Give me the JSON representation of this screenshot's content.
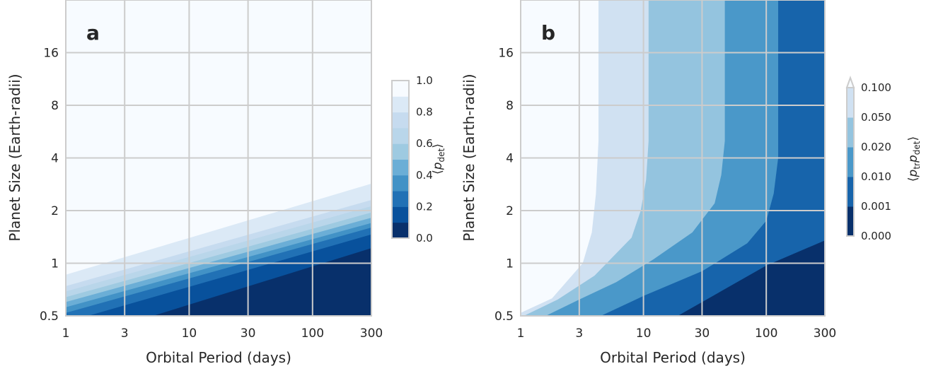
{
  "chart_data": [
    {
      "type": "contour",
      "panel_label": "a",
      "xlabel": "Orbital Period (days)",
      "ylabel": "Planet Size (Earth-radii)",
      "xscale": "log",
      "yscale": "log2",
      "xlim": [
        1,
        300
      ],
      "ylim": [
        0.5,
        32
      ],
      "xticks": [
        1,
        3,
        10,
        30,
        100,
        300
      ],
      "xtick_labels": [
        "1",
        "3",
        "10",
        "30",
        "100",
        "300"
      ],
      "yticks": [
        0.5,
        1,
        2,
        4,
        8,
        16
      ],
      "ytick_labels": [
        "0.5",
        "1",
        "2",
        "4",
        "8",
        "16"
      ],
      "grid": true,
      "colormap": "Blues_r",
      "colorbar": {
        "label": "⟨p_det⟩",
        "levels": [
          0.0,
          0.1,
          0.2,
          0.3,
          0.4,
          0.5,
          0.6,
          0.7,
          0.8,
          0.9,
          1.0
        ],
        "tick_values": [
          0.0,
          0.2,
          0.4,
          0.6,
          0.8,
          1.0
        ],
        "tick_labels": [
          "0.0",
          "0.2",
          "0.4",
          "0.6",
          "0.8",
          "1.0"
        ],
        "colors": [
          "#08306b",
          "#08519c",
          "#2171b5",
          "#4292c6",
          "#6baed6",
          "#9ecae1",
          "#b9d6ea",
          "#c6dbef",
          "#dbe9f6",
          "#e6f0f9"
        ],
        "top_color": "#f7fbff"
      },
      "contours": [
        {
          "level": 0.1,
          "r_at_p1": 0.35,
          "r_at_p300": 1.22
        },
        {
          "level": 0.2,
          "r_at_p1": 0.46,
          "r_at_p300": 1.46
        },
        {
          "level": 0.3,
          "r_at_p1": 0.52,
          "r_at_p300": 1.6
        },
        {
          "level": 0.4,
          "r_at_p1": 0.56,
          "r_at_p300": 1.7
        },
        {
          "level": 0.5,
          "r_at_p1": 0.6,
          "r_at_p300": 1.82
        },
        {
          "level": 0.6,
          "r_at_p1": 0.64,
          "r_at_p300": 1.95
        },
        {
          "level": 0.7,
          "r_at_p1": 0.69,
          "r_at_p300": 2.12
        },
        {
          "level": 0.8,
          "r_at_p1": 0.74,
          "r_at_p300": 2.3
        },
        {
          "level": 0.9,
          "r_at_p1": 0.86,
          "r_at_p300": 2.85
        }
      ]
    },
    {
      "type": "contour",
      "panel_label": "b",
      "xlabel": "Orbital Period (days)",
      "ylabel": "Planet Size (Earth-radii)",
      "xscale": "log",
      "yscale": "log2",
      "xlim": [
        1,
        300
      ],
      "ylim": [
        0.5,
        32
      ],
      "xticks": [
        1,
        3,
        10,
        30,
        100,
        300
      ],
      "xtick_labels": [
        "1",
        "3",
        "10",
        "30",
        "100",
        "300"
      ],
      "yticks": [
        0.5,
        1,
        2,
        4,
        8,
        16
      ],
      "ytick_labels": [
        "0.5",
        "1",
        "2",
        "4",
        "8",
        "16"
      ],
      "grid": true,
      "colormap": "Blues_r",
      "colorbar": {
        "label": "⟨p_tr p_det⟩",
        "levels": [
          0.0,
          0.001,
          0.01,
          0.02,
          0.05,
          0.1
        ],
        "tick_labels": [
          "0.000",
          "0.001",
          "0.010",
          "0.020",
          "0.050",
          "0.100"
        ],
        "extend": "max",
        "colors": [
          "#08306b",
          "#1764ab",
          "#4a98c9",
          "#94c4df",
          "#d0e1f2"
        ],
        "over_color": "#f7fbff"
      },
      "contours": [
        {
          "level": 0.001,
          "points": [
            [
              19,
              0.5
            ],
            [
              100,
              0.97
            ],
            [
              300,
              1.35
            ]
          ]
        },
        {
          "level": 0.01,
          "points": [
            [
              4.5,
              0.5
            ],
            [
              10,
              0.65
            ],
            [
              30,
              0.9
            ],
            [
              70,
              1.3
            ],
            [
              100,
              1.75
            ],
            [
              115,
              2.5
            ],
            [
              125,
              4
            ],
            [
              125,
              32
            ]
          ]
        },
        {
          "level": 0.02,
          "points": [
            [
              1.6,
              0.5
            ],
            [
              3,
              0.62
            ],
            [
              6,
              0.78
            ],
            [
              12,
              1.05
            ],
            [
              25,
              1.5
            ],
            [
              38,
              2.2
            ],
            [
              43,
              3.2
            ],
            [
              46,
              5
            ],
            [
              46,
              32
            ]
          ]
        },
        {
          "level": 0.05,
          "points": [
            [
              1.06,
              0.5
            ],
            [
              2,
              0.62
            ],
            [
              4,
              0.85
            ],
            [
              8,
              1.4
            ],
            [
              9.5,
              2
            ],
            [
              10.5,
              3
            ],
            [
              11,
              5
            ],
            [
              11,
              32
            ]
          ]
        },
        {
          "level": 0.1,
          "points": [
            [
              1,
              0.52
            ],
            [
              1.8,
              0.63
            ],
            [
              3.2,
              1.0
            ],
            [
              3.8,
              1.5
            ],
            [
              4.1,
              2.5
            ],
            [
              4.3,
              5
            ],
            [
              4.3,
              32
            ]
          ]
        }
      ]
    }
  ]
}
